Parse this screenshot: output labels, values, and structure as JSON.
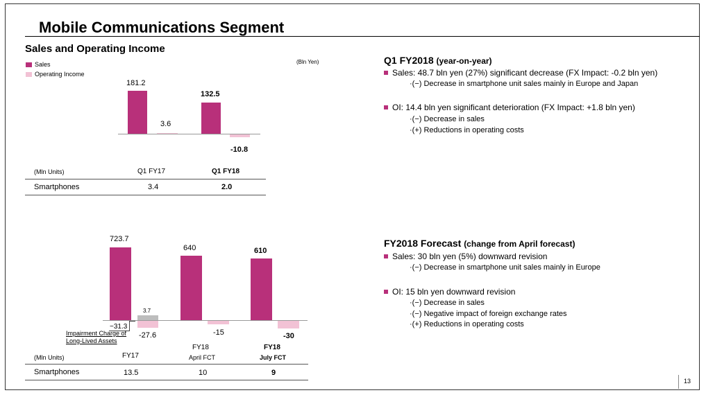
{
  "slide": {
    "title": "Mobile Communications Segment",
    "subtitle": "Sales and Operating Income",
    "unit_sales": "(Bln Yen)",
    "page_number": "13"
  },
  "legend": {
    "sales": "Sales",
    "oi": "Operating Income"
  },
  "colors": {
    "sales": "#b8307a",
    "oi": "#f2c2d5",
    "impairment": "#bdbdbd"
  },
  "chart_data": [
    {
      "type": "bar",
      "categories": [
        "Q1 FY17",
        "Q1 FY18"
      ],
      "series": [
        {
          "name": "Sales",
          "values": [
            181.2,
            132.5
          ],
          "labels": [
            "181.2",
            "132.5"
          ]
        },
        {
          "name": "Operating Income",
          "values": [
            3.6,
            -10.8
          ],
          "labels": [
            "3.6",
            "-10.8"
          ]
        }
      ],
      "ylabel": "(Bln Yen)"
    },
    {
      "type": "bar",
      "categories": [
        "FY17",
        "FY18 April FCT",
        "FY18 July FCT"
      ],
      "series": [
        {
          "name": "Sales",
          "values": [
            723.7,
            640,
            610
          ],
          "labels": [
            "723.7",
            "640",
            "610"
          ]
        },
        {
          "name": "Operating Income",
          "values": [
            -27.6,
            -15,
            -30
          ],
          "labels": [
            "-27.6",
            "-15",
            "-30"
          ]
        }
      ],
      "annotation": {
        "label": "Impairment Charge of Long-Lived Assets",
        "value_above": "3.7",
        "value_below": "−31.3"
      }
    }
  ],
  "table1": {
    "unit": "(Mln Units)",
    "col1": "Q1 FY17",
    "col2": "Q1 FY18",
    "row_label": "Smartphones",
    "v1": "3.4",
    "v2": "2.0"
  },
  "table2": {
    "unit": "(Mln Units)",
    "col1": "FY17",
    "col2_line1": "FY18",
    "col2_line2": "April FCT",
    "col3_line1": "FY18",
    "col3_line2": "July FCT",
    "row_label": "Smartphones",
    "v1": "13.5",
    "v2": "10",
    "v3": "9"
  },
  "impairment": {
    "line1": "Impairment Charge of",
    "line2": "Long-Lived Assets",
    "above": "3.7",
    "below": "−31.3"
  },
  "q1": {
    "title": "Q1 FY2018",
    "title_paren": "(year-on-year)",
    "sales_bullet": "Sales: 48.7 bln yen (27%) significant decrease (FX Impact: -0.2 bln yen)",
    "sales_sub1": "·(−) Decrease in smartphone unit sales mainly in Europe and Japan",
    "oi_bullet": "OI: 14.4 bln yen significant deterioration (FX Impact:  +1.8 bln yen)",
    "oi_sub1": "·(−) Decrease in sales",
    "oi_sub2": "·(+) Reductions in operating costs"
  },
  "fy": {
    "title": "FY2018 Forecast",
    "title_paren": "(change from April forecast)",
    "sales_bullet": "Sales: 30 bln yen (5%) downward revision",
    "sales_sub1": "·(−) Decrease in smartphone unit sales mainly in Europe",
    "oi_bullet": "OI: 15 bln yen downward revision",
    "oi_sub1": "·(−) Decrease in sales",
    "oi_sub2": "·(−) Negative impact of foreign exchange rates",
    "oi_sub3": "·(+) Reductions in operating costs"
  }
}
